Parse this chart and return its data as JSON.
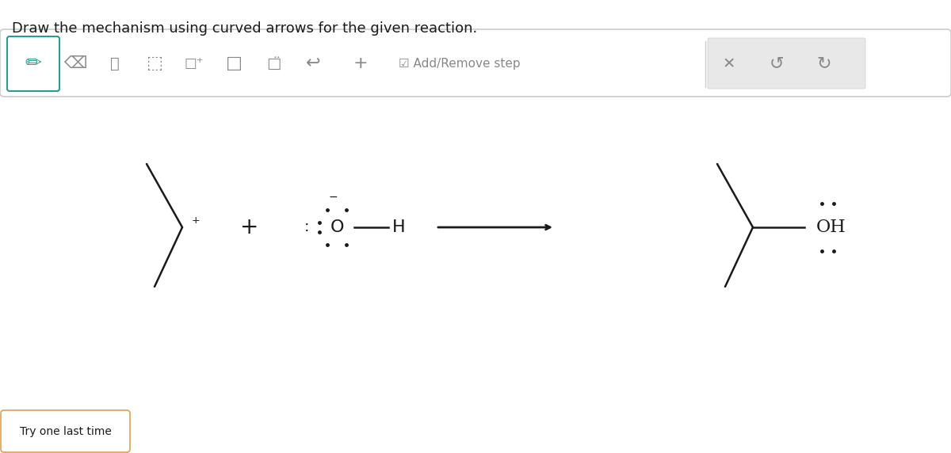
{
  "title": "Draw the mechanism using curved arrows for the given reaction.",
  "title_fontsize": 13,
  "bg_color": "#ffffff",
  "toolbar_color": "#f5f5f5",
  "toolbar_border_color": "#cccccc",
  "teal_color": "#2a9d8f",
  "black_color": "#1a1a1a",
  "gray_color": "#888888",
  "try_label": "Try one last time",
  "add_remove_label": "Add/Remove step"
}
